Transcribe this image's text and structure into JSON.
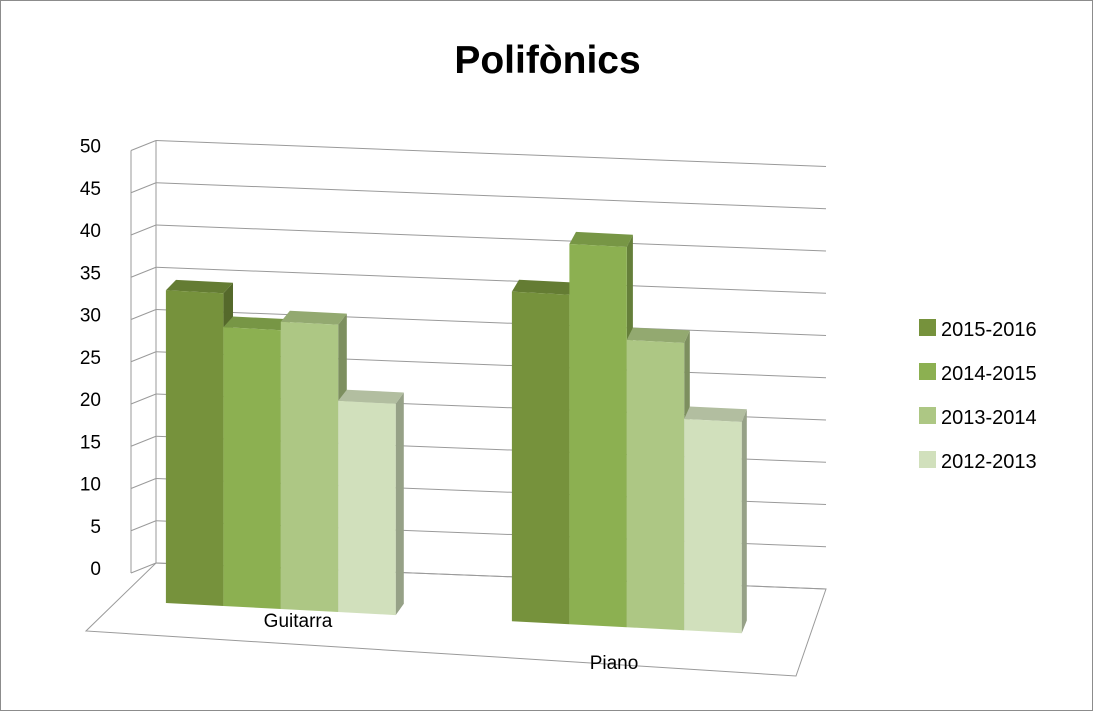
{
  "chart_data": {
    "type": "bar",
    "title": "Polifònics",
    "categories": [
      "Guitarra",
      "Piano"
    ],
    "series": [
      {
        "name": "2015-2016",
        "values": [
          37,
          39
        ],
        "color": "#76923c"
      },
      {
        "name": "2014-2015",
        "values": [
          33,
          45
        ],
        "color": "#8cb051"
      },
      {
        "name": "2013-2014",
        "values": [
          34,
          34
        ],
        "color": "#adc784"
      },
      {
        "name": "2012-2013",
        "values": [
          25,
          25
        ],
        "color": "#d1e0bc"
      }
    ],
    "y_ticks": [
      0,
      5,
      10,
      15,
      20,
      25,
      30,
      35,
      40,
      45,
      50
    ],
    "ylim": [
      0,
      50
    ],
    "grid": true,
    "legend_position": "right",
    "style": "3d-clustered-column"
  }
}
